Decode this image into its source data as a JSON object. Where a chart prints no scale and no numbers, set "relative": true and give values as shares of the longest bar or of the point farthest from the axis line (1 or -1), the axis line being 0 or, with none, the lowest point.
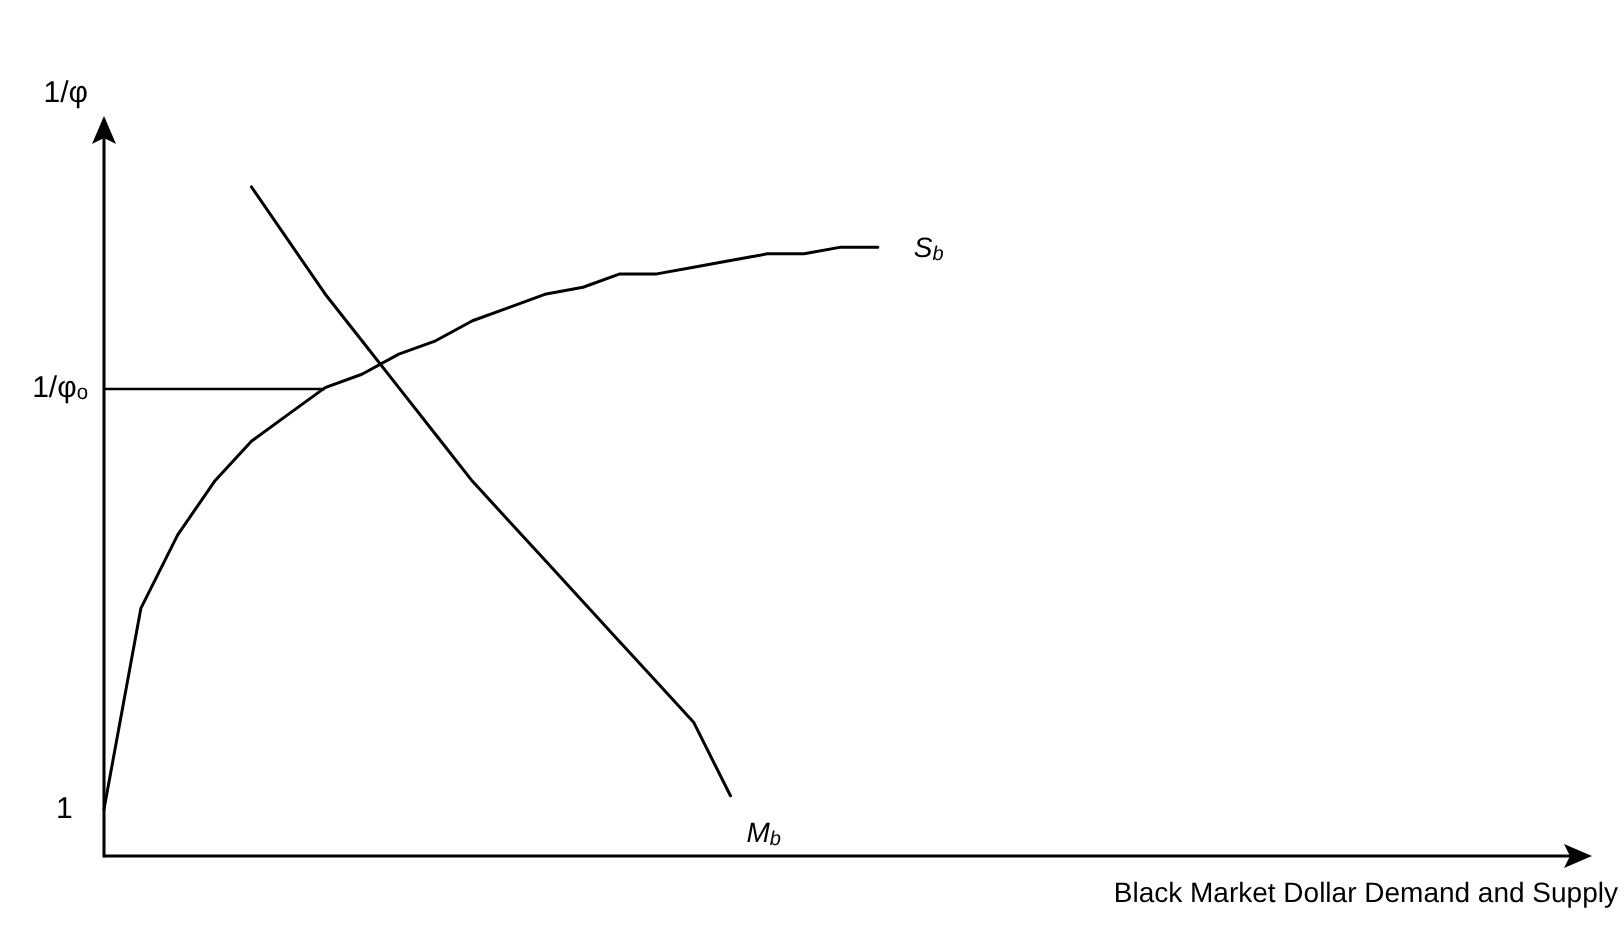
{
  "chart_data": {
    "type": "line",
    "relative": true,
    "ylabel": "1/φ",
    "xlabel": "Black Market Dollar Demand and Supply",
    "categories": [
      null,
      null,
      null,
      null,
      null,
      null,
      null,
      null,
      null,
      null,
      null,
      null,
      null,
      null,
      null,
      null,
      null,
      null,
      null,
      null,
      null,
      null,
      null,
      null,
      null,
      null,
      null,
      null,
      null,
      null,
      null,
      null,
      null,
      null,
      null,
      null,
      null,
      null,
      null,
      null,
      null
    ],
    "series": [
      {
        "name": "S$_{b}$",
        "color": "#000000",
        "values": [
          0.07,
          0.37,
          0.48,
          0.56,
          0.62,
          0.66,
          0.7,
          0.72,
          0.75,
          0.77,
          0.8,
          0.82,
          0.84,
          0.85,
          0.87,
          0.87,
          0.88,
          0.89,
          0.9,
          0.9,
          0.91,
          0.91,
          null,
          null,
          null,
          null,
          null,
          null,
          null,
          null,
          null,
          null,
          null,
          null,
          null,
          null,
          null,
          null,
          null,
          null,
          null
        ]
      },
      {
        "name": "M$_{b}$",
        "color": "#000000",
        "values": [
          null,
          null,
          null,
          null,
          1.0,
          0.92,
          0.84,
          0.77,
          0.7,
          0.63,
          0.56,
          0.5,
          0.44,
          0.38,
          0.32,
          0.26,
          0.2,
          0.09,
          null,
          null,
          null,
          null,
          null,
          null,
          null,
          null,
          null,
          null,
          null,
          null,
          null,
          null,
          null,
          null,
          null,
          null,
          null,
          null,
          null,
          null,
          null
        ]
      }
    ],
    "ref_lines": [
      {
        "axis": "y",
        "value": 0.7,
        "label": "1/φₒ"
      }
    ],
    "annotations": [
      "1"
    ],
    "marker": "none",
    "grid": false,
    "legend": false
  }
}
